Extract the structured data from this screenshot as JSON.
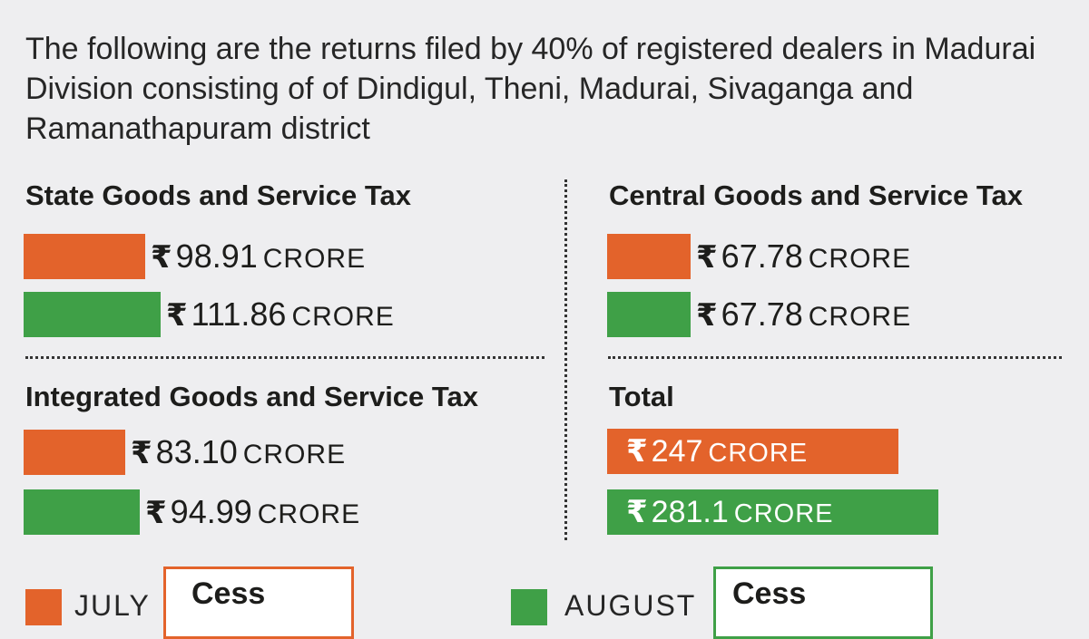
{
  "colors": {
    "july": "#e3632b",
    "august": "#3fa047",
    "divider": "#333333"
  },
  "intro_text": "The following are the returns filed by 40% of registered dealers in Madurai Division consisting of of Dindigul, Theni, Madurai, Sivaganga and Ramanathapuram district",
  "currency_symbol": "₹",
  "unit_label": "CRORE",
  "chart_data": [
    {
      "type": "bar",
      "title": "State Goods and Service Tax",
      "series": [
        {
          "name": "JULY",
          "values": [
            98.91
          ]
        },
        {
          "name": "AUGUST",
          "values": [
            111.86
          ]
        }
      ],
      "value_labels": [
        "98.91",
        "111.86"
      ]
    },
    {
      "type": "bar",
      "title": "Central Goods and Service Tax",
      "series": [
        {
          "name": "JULY",
          "values": [
            67.78
          ]
        },
        {
          "name": "AUGUST",
          "values": [
            67.78
          ]
        }
      ],
      "value_labels": [
        "67.78",
        "67.78"
      ]
    },
    {
      "type": "bar",
      "title": "Integrated Goods and Service Tax",
      "series": [
        {
          "name": "JULY",
          "values": [
            83.1
          ]
        },
        {
          "name": "AUGUST",
          "values": [
            94.99
          ]
        }
      ],
      "value_labels": [
        "83.10",
        "94.99"
      ]
    },
    {
      "type": "bar",
      "title": "Total",
      "series": [
        {
          "name": "JULY",
          "values": [
            247
          ]
        },
        {
          "name": "AUGUST",
          "values": [
            281.1
          ]
        }
      ],
      "value_labels": [
        "247",
        "281.1"
      ]
    }
  ],
  "legend": [
    {
      "label": "JULY",
      "cess_label": "Cess"
    },
    {
      "label": "AUGUST",
      "cess_label": "Cess"
    }
  ]
}
